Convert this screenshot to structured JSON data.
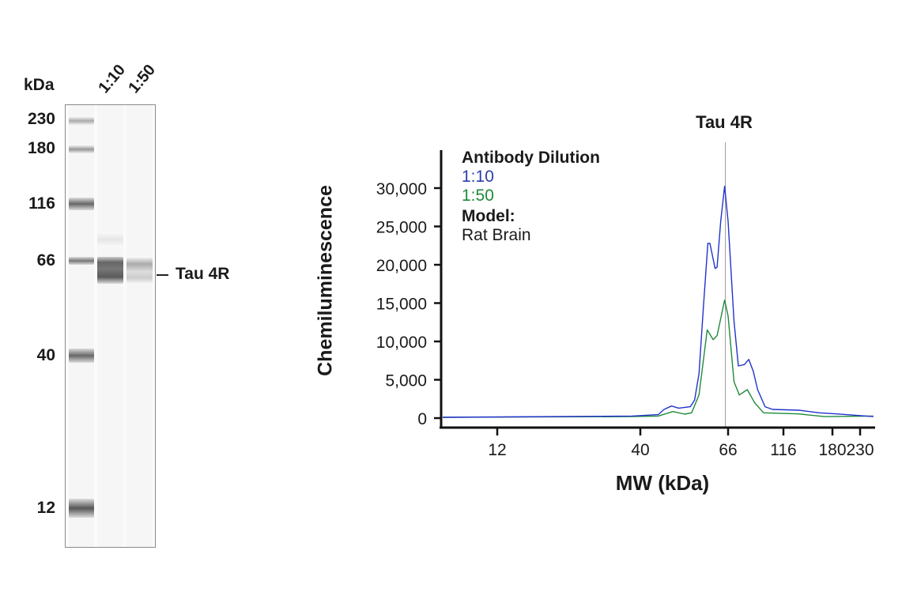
{
  "blot": {
    "unit_label": "kDa",
    "markers": [
      "230",
      "180",
      "116",
      "66",
      "40",
      "12"
    ],
    "lanes": [
      "1:10",
      "1:50"
    ],
    "band_label": "Tau 4R"
  },
  "chart_data": {
    "type": "line",
    "title": "",
    "annotation": "Tau 4R",
    "annotation_x": 65,
    "xlabel": "MW (kDa)",
    "ylabel": "Chemiluminescence",
    "xticks": [
      12,
      40,
      66,
      116,
      180,
      230
    ],
    "xtick_labels": [
      "12",
      "40",
      "66",
      "116",
      "180",
      "230"
    ],
    "yticks": [
      0,
      5000,
      10000,
      15000,
      20000,
      25000,
      30000
    ],
    "ytick_labels": [
      "0",
      "5,000",
      "10,000",
      "15,000",
      "20,000",
      "25,000",
      "30,000"
    ],
    "xlim": [
      7.4,
      262
    ],
    "ylim": [
      0,
      35000
    ],
    "grid": false,
    "legend": {
      "title": "Antibody Dilution",
      "model_title": "Model:",
      "model_value": "Rat Brain",
      "placement": "top-left"
    },
    "series": [
      {
        "name": "1:10",
        "color": "#2233cc",
        "x": [
          7.5,
          37.3,
          44.3,
          45.8,
          47.8,
          49.8,
          53.2,
          54.5,
          55.9,
          57.3,
          58.8,
          59.5,
          61.3,
          62.0,
          63.3,
          64.7,
          66,
          70.1,
          73.3,
          77.9,
          81.5,
          85.3,
          89.2,
          96.2,
          103.8,
          133.3,
          160,
          187.1,
          258
        ],
        "y": [
          100,
          270,
          450,
          1130,
          1580,
          1300,
          1480,
          2340,
          5770,
          14360,
          22780,
          22780,
          19520,
          19690,
          25700,
          30240,
          25700,
          12650,
          6800,
          6980,
          7660,
          6120,
          3710,
          1480,
          1130,
          1030,
          690,
          550,
          200
        ]
      },
      {
        "name": "1:50",
        "color": "#1f8a3a",
        "x": [
          7.5,
          37.3,
          44.3,
          48.2,
          51.5,
          53.6,
          55.9,
          57.3,
          58.6,
          60.6,
          62.0,
          63.3,
          64.7,
          66,
          70.1,
          74.0,
          80.3,
          86.6,
          94.8,
          133.3,
          167.3,
          258
        ],
        "y": [
          100,
          200,
          270,
          860,
          520,
          690,
          3020,
          7490,
          11510,
          10240,
          10760,
          12990,
          15390,
          13330,
          4740,
          3020,
          3710,
          1990,
          690,
          550,
          200,
          270
        ]
      }
    ]
  }
}
